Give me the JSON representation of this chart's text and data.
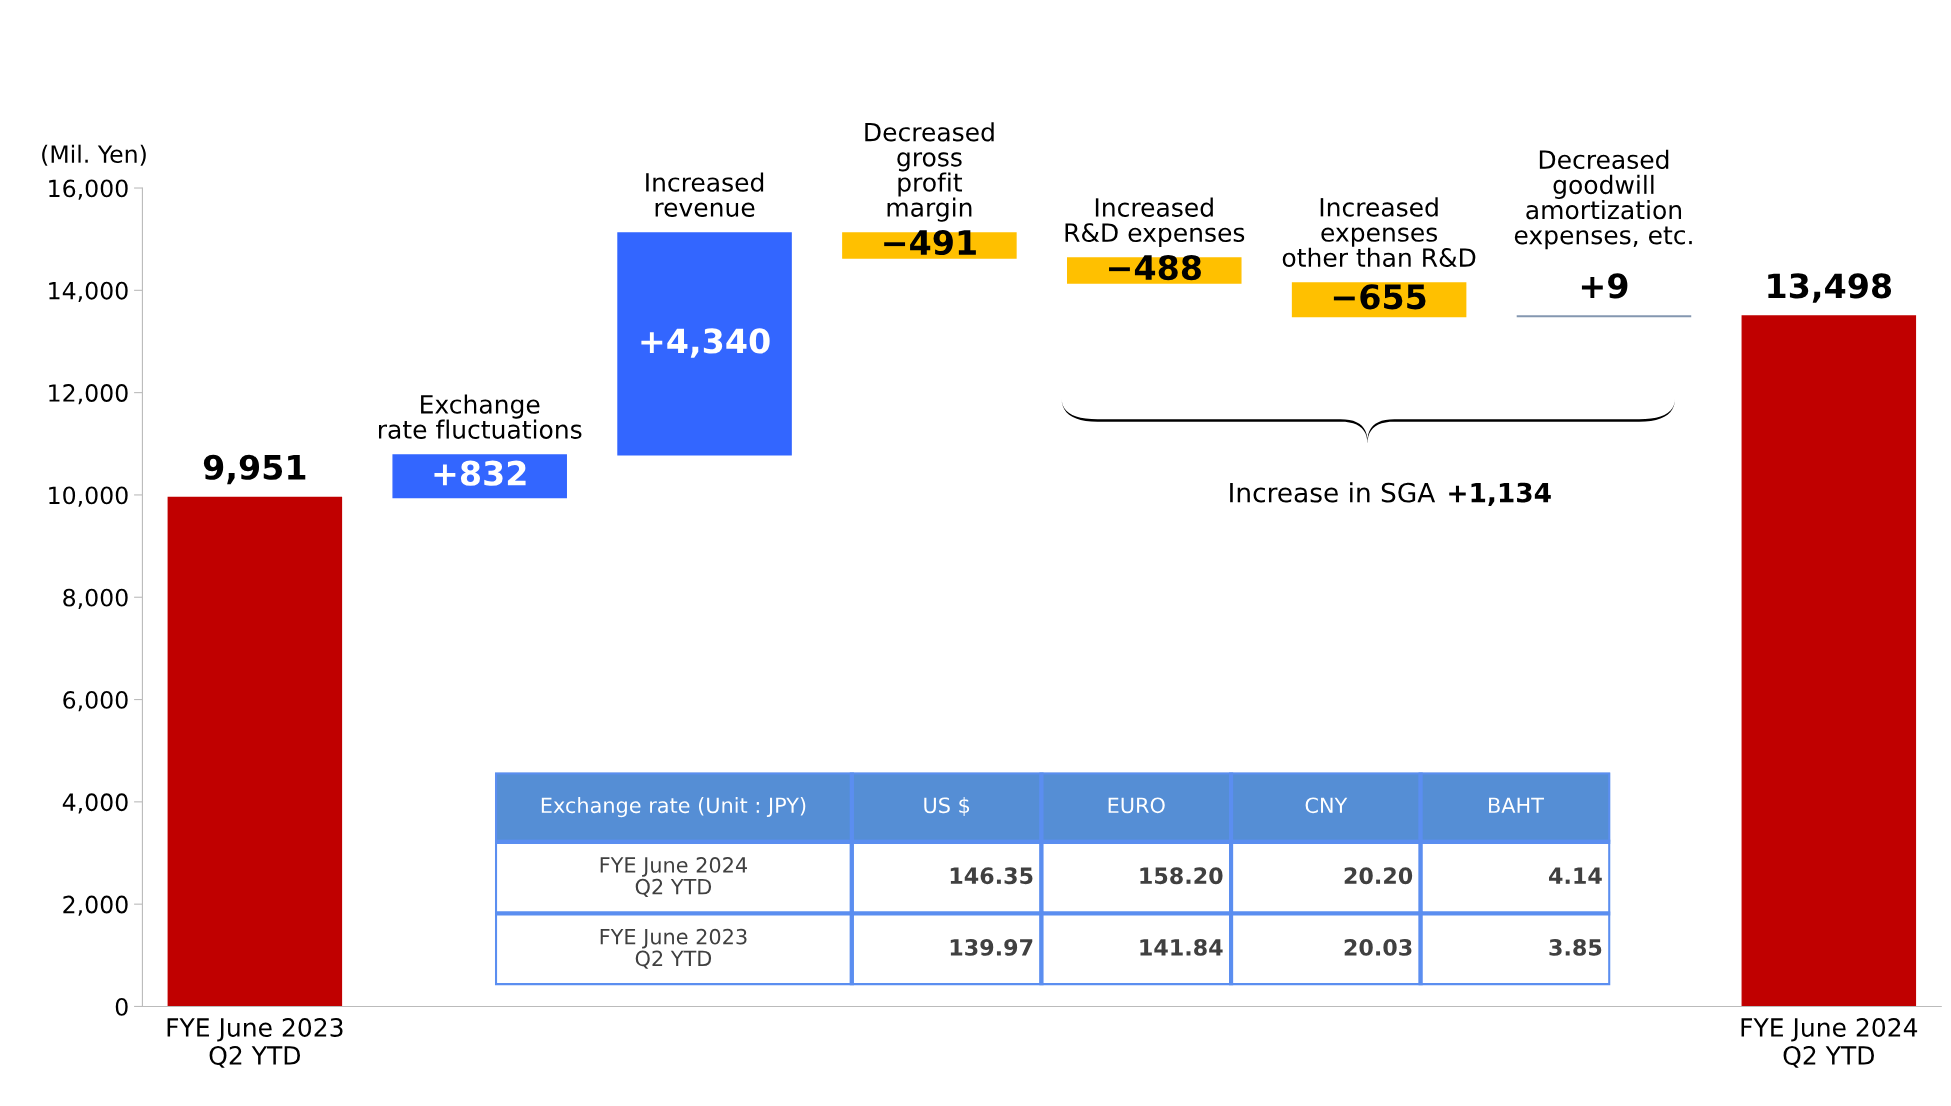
{
  "chart_data": [
    {
      "type": "bar",
      "ylabel": "(Mil. Yen)",
      "categories": [
        "FYE June 2023\nQ2 YTD",
        "Exchange\nrate fluctuations",
        "Increased\nrevenue",
        "Decreased\ngross\nprofit\nmargin",
        "Increased\nR&D expenses",
        "Increased\nexpenses\nother than R&D",
        "Decreased\ngoodwill\namortization\nexpenses, etc.",
        "FYE June 2024\nQ2 YTD"
      ],
      "values": [
        9951,
        832,
        4340,
        -491,
        -488,
        -655,
        9,
        13498
      ],
      "base": [
        0,
        9951,
        10783,
        15123,
        14632,
        14144,
        13489,
        0
      ],
      "colors": [
        "#c00000",
        "#3366ff",
        "#3366ff",
        "#ffc000",
        "#ffc000",
        "#ffc000",
        "#8497b0",
        "#c00000"
      ],
      "value_labels": [
        "9,951",
        "+832",
        "+4,340",
        "−491",
        "−488",
        "−655",
        "+9",
        "13,498"
      ],
      "ylim": [
        0,
        16000
      ],
      "yticks": [
        {
          "value": 0,
          "label": "0"
        },
        {
          "value": 2000,
          "label": "2,000"
        },
        {
          "value": 4000,
          "label": "4,000"
        },
        {
          "value": 6000,
          "label": "6,000"
        },
        {
          "value": 8000,
          "label": "8,000"
        },
        {
          "value": 10000,
          "label": "10,000"
        },
        {
          "value": 12000,
          "label": "12,000"
        },
        {
          "value": 14000,
          "label": "14,000"
        },
        {
          "value": 16000,
          "label": "16,000"
        }
      ],
      "annotations": [
        "Increase in SGA",
        "+1,134"
      ],
      "grid": false,
      "legend": false
    },
    {
      "type": "other",
      "categories": [
        "Exchange rate (Unit : JPY)",
        "US $",
        "EURO",
        "CNY",
        "BAHT"
      ],
      "y_categories": [
        "FYE June 2024\nQ2 YTD",
        "FYE June 2023\nQ2 YTD"
      ],
      "cell_labels": [
        [
          "146.35",
          "158.20",
          "20.20",
          "4.14"
        ],
        [
          "139.97",
          "141.84",
          "20.03",
          "3.85"
        ]
      ]
    }
  ]
}
